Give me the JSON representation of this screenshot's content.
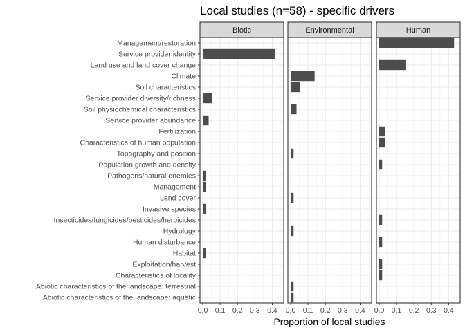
{
  "chart_data": {
    "type": "bar",
    "orientation": "horizontal",
    "title": "Local studies (n=58) - specific drivers",
    "xlabel": "Proportion of local studies",
    "ylabel": "",
    "xlim": [
      0,
      0.45
    ],
    "xticks": [
      "0.0",
      "0.1",
      "0.2",
      "0.3",
      "0.4"
    ],
    "grid": true,
    "bar_color": "#4d4d4d",
    "strip_color": "#d9d9d9",
    "categories": [
      "Management/restoration",
      "Service provider identity",
      "Land use and land cover change",
      "Climate",
      "Soil characteristics",
      "Service provider diversity/richness",
      "Soil physiochemical characteristics",
      "Service provider abundance",
      "Fertilization",
      "Characteristics of human population",
      "Topography and position",
      "Population growth and density",
      "Pathogens/natural enemies",
      "Management",
      "Land cover",
      "Invasive species",
      "Insecticides/fungicides/pesticides/herbicides",
      "Hydrology",
      "Human disturbance",
      "Habitat",
      "Exploitation/harvest",
      "Characteristics of locality",
      "Abiotic characteristics of the landscape: terrestrial",
      "Abiotic characteristics of the landscape: aquatic"
    ],
    "panels": [
      {
        "name": "Biotic",
        "values": [
          0,
          0.414,
          0,
          0,
          0,
          0.052,
          0,
          0.034,
          0,
          0,
          0,
          0,
          0.017,
          0.017,
          0,
          0.017,
          0,
          0,
          0,
          0.017,
          0,
          0,
          0,
          0
        ]
      },
      {
        "name": "Environmental",
        "values": [
          0,
          0,
          0,
          0.138,
          0.052,
          0,
          0.034,
          0,
          0,
          0,
          0.017,
          0,
          0,
          0,
          0.017,
          0,
          0,
          0.017,
          0,
          0,
          0,
          0,
          0.017,
          0.017
        ]
      },
      {
        "name": "Human",
        "values": [
          0.431,
          0,
          0.155,
          0,
          0,
          0,
          0,
          0,
          0.034,
          0.034,
          0,
          0.017,
          0,
          0,
          0,
          0,
          0.017,
          0,
          0.017,
          0,
          0.017,
          0.017,
          0,
          0
        ]
      }
    ]
  }
}
